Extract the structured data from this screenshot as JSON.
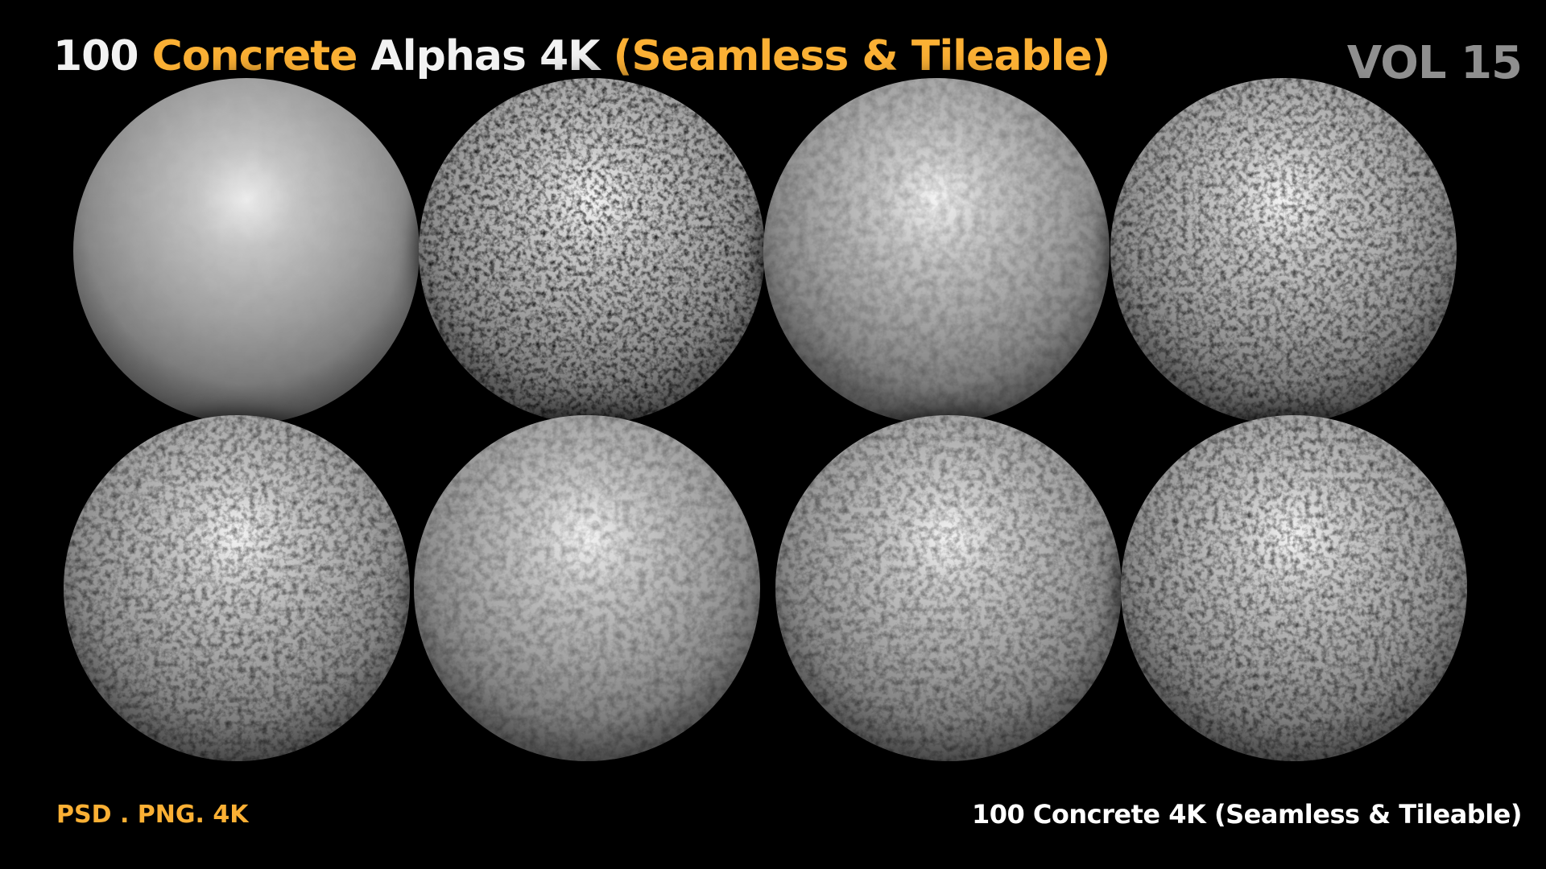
{
  "title": {
    "part1": "100 ",
    "part2": "Concrete",
    "part3": " Alphas 4K ",
    "part4": "(Seamless & Tileable)"
  },
  "volume": "VOL 15",
  "footer": {
    "formats": "PSD . PNG. 4K",
    "caption": "100 Concrete 4K (Seamless & Tileable)"
  },
  "colors": {
    "accent": "#fbb034",
    "text": "#f2f2f2",
    "volume": "#8f8f8f",
    "background": "#000000"
  },
  "spheres": [
    {
      "material": "smooth-concrete",
      "roughness": 0.05
    },
    {
      "material": "pitted-concrete",
      "roughness": 0.9
    },
    {
      "material": "porous-concrete",
      "roughness": 0.35
    },
    {
      "material": "speckled-concrete",
      "roughness": 0.8
    },
    {
      "material": "fine-pitted-concrete",
      "roughness": 0.7
    },
    {
      "material": "light-grain-concrete",
      "roughness": 0.45
    },
    {
      "material": "rough-grain-concrete",
      "roughness": 0.6
    },
    {
      "material": "weathered-concrete",
      "roughness": 0.75
    }
  ]
}
